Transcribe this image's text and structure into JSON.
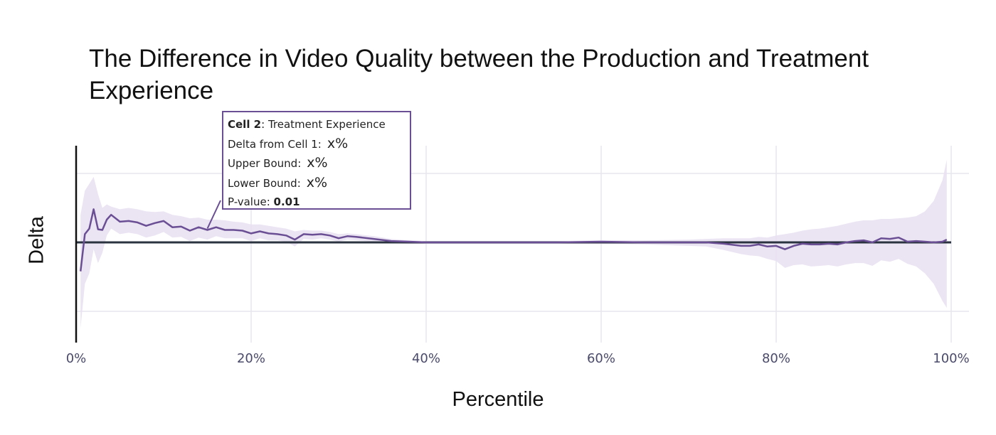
{
  "chart_data": {
    "type": "line",
    "title": "The Difference in Video Quality between the Production and Treatment Experience",
    "xlabel": "Percentile",
    "ylabel": "Delta",
    "xlim": [
      0,
      100
    ],
    "ylim": [
      -1.45,
      1.45
    ],
    "x_ticks": [
      0,
      20,
      40,
      60,
      80,
      100
    ],
    "x_tick_labels": [
      "0%",
      "20%",
      "40%",
      "60%",
      "80%",
      "100%"
    ],
    "grid": true,
    "legend": "none",
    "colors": {
      "line": "#6b4f94",
      "band": "#e9e1f2",
      "zero_line": "#2b3340",
      "grid": "#e6e6ee"
    },
    "series": [
      {
        "x": [
          0.5,
          1,
          1.5,
          2,
          2.5,
          3,
          3.5,
          4,
          5,
          6,
          7,
          8,
          9,
          10,
          11,
          12,
          13,
          14,
          15,
          16,
          17,
          18,
          19,
          20,
          21,
          22,
          23,
          24,
          25,
          26,
          27,
          28,
          29,
          30,
          31,
          32,
          34,
          36,
          38,
          40,
          45,
          50,
          55,
          60,
          65,
          70,
          72,
          74,
          76,
          77,
          78,
          79,
          80,
          81,
          82,
          83,
          84,
          85,
          86,
          87,
          88,
          89,
          90,
          91,
          92,
          93,
          94,
          95,
          96,
          97,
          98,
          99,
          99.5
        ],
        "y": [
          -0.42,
          0.12,
          0.2,
          0.48,
          0.19,
          0.18,
          0.33,
          0.4,
          0.3,
          0.31,
          0.29,
          0.24,
          0.28,
          0.31,
          0.22,
          0.23,
          0.17,
          0.22,
          0.18,
          0.22,
          0.18,
          0.18,
          0.17,
          0.13,
          0.16,
          0.13,
          0.12,
          0.1,
          0.04,
          0.12,
          0.11,
          0.12,
          0.1,
          0.06,
          0.09,
          0.08,
          0.05,
          0.02,
          0.01,
          0.0,
          0.0,
          0.0,
          0.0,
          0.01,
          0.0,
          0.0,
          0.0,
          -0.02,
          -0.05,
          -0.05,
          -0.03,
          -0.06,
          -0.05,
          -0.1,
          -0.05,
          -0.02,
          -0.03,
          -0.03,
          -0.02,
          -0.03,
          0.0,
          0.02,
          0.03,
          0.0,
          0.06,
          0.05,
          0.07,
          0.01,
          0.02,
          0.01,
          0.0,
          0.01,
          0.04
        ],
        "upper": [
          0.4,
          0.75,
          0.85,
          0.95,
          0.7,
          0.5,
          0.55,
          0.52,
          0.48,
          0.5,
          0.48,
          0.45,
          0.44,
          0.45,
          0.4,
          0.38,
          0.35,
          0.36,
          0.33,
          0.33,
          0.32,
          0.3,
          0.29,
          0.26,
          0.26,
          0.24,
          0.22,
          0.2,
          0.16,
          0.18,
          0.17,
          0.17,
          0.15,
          0.12,
          0.13,
          0.12,
          0.09,
          0.05,
          0.03,
          0.02,
          0.02,
          0.02,
          0.02,
          0.03,
          0.03,
          0.04,
          0.05,
          0.06,
          0.06,
          0.06,
          0.08,
          0.07,
          0.1,
          0.12,
          0.14,
          0.17,
          0.19,
          0.2,
          0.22,
          0.24,
          0.27,
          0.3,
          0.32,
          0.32,
          0.34,
          0.34,
          0.35,
          0.36,
          0.38,
          0.45,
          0.6,
          0.9,
          1.2
        ],
        "lower": [
          -1.25,
          -0.6,
          -0.45,
          -0.1,
          -0.3,
          -0.15,
          0.1,
          0.2,
          0.12,
          0.14,
          0.12,
          0.07,
          0.1,
          0.15,
          0.07,
          0.08,
          0.02,
          0.07,
          0.04,
          0.09,
          0.06,
          0.06,
          0.06,
          0.02,
          0.06,
          0.03,
          0.03,
          0.01,
          -0.06,
          0.05,
          0.04,
          0.06,
          0.04,
          0.01,
          0.04,
          0.03,
          0.01,
          -0.01,
          -0.02,
          -0.02,
          -0.02,
          -0.02,
          -0.02,
          -0.02,
          -0.03,
          -0.05,
          -0.06,
          -0.11,
          -0.17,
          -0.19,
          -0.2,
          -0.24,
          -0.27,
          -0.37,
          -0.33,
          -0.32,
          -0.35,
          -0.34,
          -0.33,
          -0.35,
          -0.32,
          -0.3,
          -0.3,
          -0.34,
          -0.26,
          -0.28,
          -0.24,
          -0.31,
          -0.35,
          -0.45,
          -0.6,
          -0.85,
          -0.95
        ]
      }
    ]
  },
  "tooltip": {
    "cell_label": "Cell 2",
    "cell_name": ": Treatment Experience",
    "delta_label": "Delta from Cell 1:",
    "delta_value": "x%",
    "upper_label": "Upper Bound:",
    "upper_value": "x%",
    "lower_label": "Lower Bound:",
    "lower_value": "x%",
    "pvalue_label": "P-value:",
    "pvalue_value": "0.01",
    "anchor_x": 15,
    "anchor_y": 0.18
  }
}
